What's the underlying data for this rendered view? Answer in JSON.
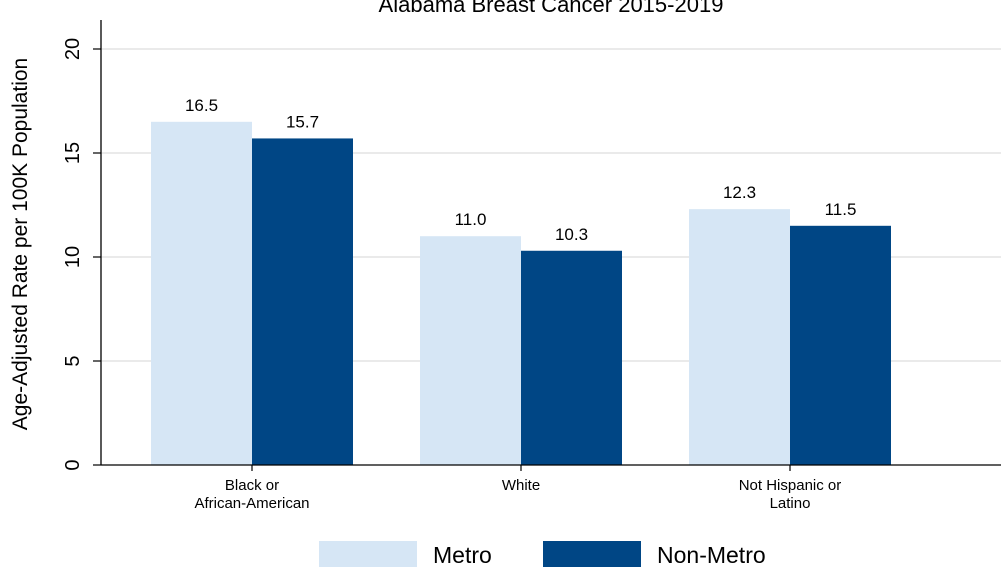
{
  "chart_data": {
    "type": "bar",
    "title": "Alabama Breast Cancer 2015-2019",
    "ylabel": "Age-Adjusted Rate per 100K Population",
    "xlabel": "",
    "ylim": [
      0,
      21
    ],
    "yticks": [
      0,
      5,
      10,
      15,
      20
    ],
    "ytick_labels": [
      "0",
      "5",
      "10",
      "15",
      "20"
    ],
    "grid": true,
    "legend_position": "bottom",
    "categories": [
      [
        "Black or",
        "African-American"
      ],
      [
        "White"
      ],
      [
        "Not Hispanic or",
        "Latino"
      ]
    ],
    "series": [
      {
        "name": "Metro",
        "color": "#d6e6f5",
        "values": [
          16.5,
          11.0,
          12.3
        ],
        "labels": [
          "16.5",
          "11.0",
          "12.3"
        ]
      },
      {
        "name": "Non-Metro",
        "color": "#004685",
        "values": [
          15.7,
          10.3,
          11.5
        ],
        "labels": [
          "15.7",
          "10.3",
          "11.5"
        ]
      }
    ]
  }
}
